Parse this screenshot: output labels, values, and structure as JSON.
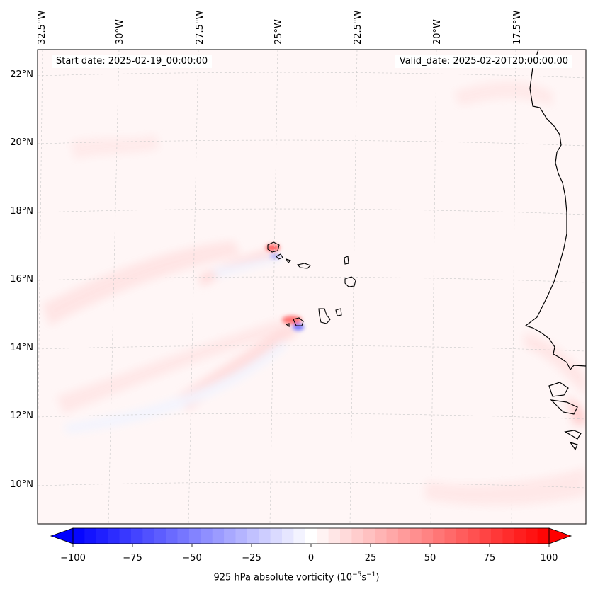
{
  "map": {
    "start_date": "Start date: 2025-02-19_00:00:00",
    "valid_date": "Valid_date: 2025-02-20T20:00:00.00",
    "lon_labels": [
      "32.5°W",
      "30°W",
      "27.5°W",
      "25°W",
      "22.5°W",
      "20°W",
      "17.5°W"
    ],
    "lat_labels": [
      "22°N",
      "20°N",
      "18°N",
      "16°N",
      "14°N",
      "12°N",
      "10°N"
    ]
  },
  "colorbar": {
    "label_prefix": "925 hPa absolute vorticity (10",
    "label_exp1": "−5",
    "label_mid": "s",
    "label_exp2": "−1",
    "label_suffix": ")",
    "ticks": [
      "−100",
      "−75",
      "−50",
      "−25",
      "0",
      "25",
      "50",
      "75",
      "100"
    ],
    "min": -100,
    "max": 100,
    "levels": 41
  },
  "colors": {
    "negative": "#0000ff",
    "positive": "#ff0000",
    "neutral": "#ffffff"
  }
}
